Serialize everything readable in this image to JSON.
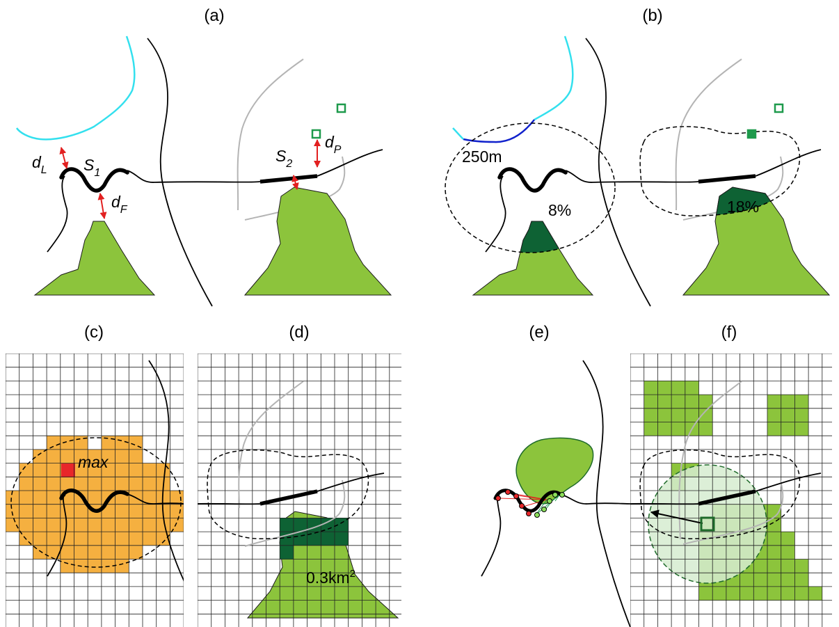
{
  "panels": {
    "a": {
      "title": "(a)",
      "s1": "S",
      "s1_sub": "1",
      "s2": "S",
      "s2_sub": "2",
      "dl": "d",
      "dl_sub": "L",
      "df": "d",
      "df_sub": "F",
      "dp": "d",
      "dp_sub": "P"
    },
    "b": {
      "title": "(b)",
      "radius": "250m",
      "pct_left": "8%",
      "pct_right": "18%"
    },
    "c": {
      "title": "(c)",
      "max_label": "max"
    },
    "d": {
      "title": "(d)",
      "area_label": "0.3km",
      "area_sup": "2"
    },
    "e": {
      "title": "(e)"
    },
    "f": {
      "title": "(f)"
    }
  },
  "colors": {
    "lake": "#33e0ee",
    "lake_dark": "#1122cc",
    "forest": "#8cc43c",
    "forest_dark": "#0e6234",
    "forest_light": "#d6ecd0",
    "buffer_orange": "#f5b040",
    "max_red": "#e8272a",
    "poi_green": "#1e9a4c",
    "arrow_red": "#e22020",
    "road_gray": "#b4b4b4",
    "grid": "#222222"
  },
  "icons": {
    "poi": "square-outline-icon",
    "arrow": "arrow-icon"
  }
}
